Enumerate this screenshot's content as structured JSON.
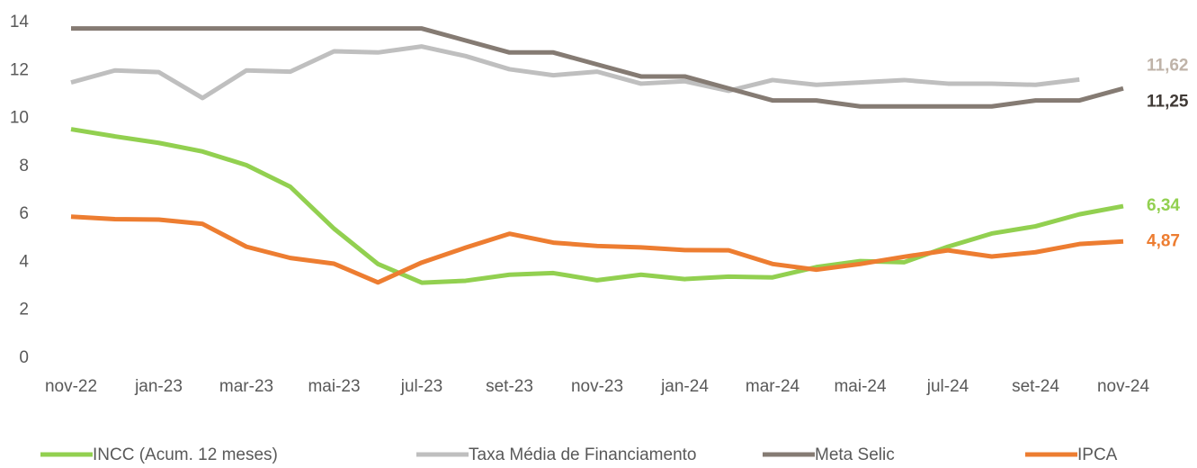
{
  "chart_data": {
    "type": "line",
    "categories": [
      "nov-22",
      null,
      "jan-23",
      null,
      "mar-23",
      null,
      "mai-23",
      null,
      "jul-23",
      null,
      "set-23",
      null,
      "nov-23",
      null,
      "jan-24",
      null,
      "mar-24",
      null,
      "mai-24",
      null,
      "jul-24",
      null,
      "set-24",
      null,
      "nov-24"
    ],
    "ylim": [
      0,
      14
    ],
    "yticks": [
      0,
      2,
      4,
      6,
      8,
      10,
      12,
      14
    ],
    "grid": false,
    "legend": "bottom",
    "series": [
      {
        "name": "INCC (Acum. 12 meses)",
        "color": "#92d050",
        "values": [
          9.55,
          9.25,
          8.98,
          8.62,
          8.05,
          7.15,
          5.4,
          3.93,
          3.15,
          3.23,
          3.48,
          3.55,
          3.25,
          3.48,
          3.3,
          3.4,
          3.37,
          3.8,
          4.05,
          4.0,
          4.65,
          5.2,
          5.5,
          6.0,
          6.34
        ],
        "value_labels": [
          null,
          null,
          null,
          null,
          null,
          null,
          null,
          null,
          null,
          null,
          null,
          null,
          null,
          null,
          null,
          null,
          null,
          null,
          null,
          null,
          null,
          null,
          null,
          null,
          "6,34"
        ]
      },
      {
        "name": "Taxa Média de Financiamento",
        "color": "#bfbfbf",
        "label_color": "#bfb3a8",
        "values": [
          11.5,
          12.0,
          11.93,
          10.85,
          12.0,
          11.95,
          12.8,
          12.75,
          13.0,
          12.6,
          12.05,
          11.8,
          11.95,
          11.45,
          11.55,
          11.15,
          11.6,
          11.4,
          11.5,
          11.6,
          11.45,
          11.45,
          11.4,
          11.62,
          null
        ],
        "value_labels": [
          null,
          null,
          null,
          null,
          null,
          null,
          null,
          null,
          null,
          null,
          null,
          null,
          null,
          null,
          null,
          null,
          null,
          null,
          null,
          null,
          null,
          null,
          null,
          "11,62",
          null
        ]
      },
      {
        "name": "Meta Selic",
        "color": "#857b73",
        "label_color": "#403a36",
        "values": [
          13.75,
          13.75,
          13.75,
          13.75,
          13.75,
          13.75,
          13.75,
          13.75,
          13.75,
          13.25,
          12.75,
          12.75,
          12.25,
          11.75,
          11.75,
          11.25,
          10.75,
          10.75,
          10.5,
          10.5,
          10.5,
          10.5,
          10.75,
          10.75,
          11.25
        ],
        "value_labels": [
          null,
          null,
          null,
          null,
          null,
          null,
          null,
          null,
          null,
          null,
          null,
          null,
          null,
          null,
          null,
          null,
          null,
          null,
          null,
          null,
          null,
          null,
          null,
          null,
          "11,25"
        ]
      },
      {
        "name": "IPCA",
        "color": "#ed7d31",
        "values": [
          5.9,
          5.8,
          5.78,
          5.6,
          4.65,
          4.18,
          3.94,
          3.16,
          3.99,
          4.61,
          5.19,
          4.82,
          4.68,
          4.62,
          4.51,
          4.5,
          3.93,
          3.69,
          3.93,
          4.23,
          4.5,
          4.24,
          4.42,
          4.76,
          4.87
        ],
        "value_labels": [
          null,
          null,
          null,
          null,
          null,
          null,
          null,
          null,
          null,
          null,
          null,
          null,
          null,
          null,
          null,
          null,
          null,
          null,
          null,
          null,
          null,
          null,
          null,
          null,
          "4,87"
        ]
      }
    ]
  }
}
